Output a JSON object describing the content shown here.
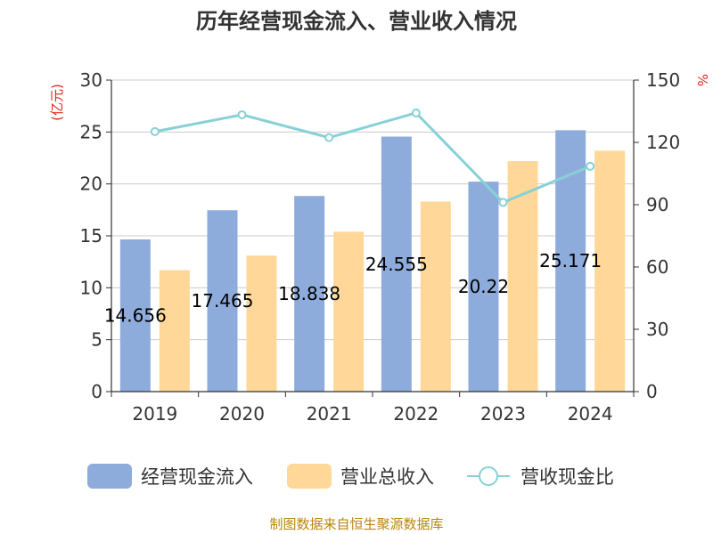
{
  "chart_data": {
    "type": "bar",
    "title": "历年经营现金流入、营业收入情况",
    "categories": [
      "2019",
      "2020",
      "2021",
      "2022",
      "2023",
      "2024"
    ],
    "series": [
      {
        "name": "经营现金流入",
        "type": "bar",
        "axis": "left",
        "color": "#8eacdb",
        "values": [
          14.656,
          17.465,
          18.838,
          24.555,
          20.22,
          25.171
        ],
        "labels": [
          "14.656",
          "17.465",
          "18.838",
          "24.555",
          "20.22",
          "25.171"
        ]
      },
      {
        "name": "营业总收入",
        "type": "bar",
        "axis": "left",
        "color": "#ffd899",
        "values": [
          11.7,
          13.1,
          15.4,
          18.3,
          22.2,
          23.2
        ]
      },
      {
        "name": "营收现金比",
        "type": "line",
        "axis": "right",
        "color": "#87d1d6",
        "values": [
          125.2,
          133.3,
          122.3,
          134.2,
          91.1,
          108.5
        ]
      }
    ],
    "y_left": {
      "label": "(亿元)",
      "min": 0,
      "max": 30,
      "ticks": [
        "0",
        "5",
        "10",
        "15",
        "20",
        "25",
        "30"
      ]
    },
    "y_right": {
      "label": "%",
      "min": 0,
      "max": 150,
      "ticks": [
        "0",
        "30",
        "60",
        "90",
        "120",
        "150"
      ]
    },
    "grid": true,
    "legend": "bottom"
  },
  "source_text": "制图数据来自恒生聚源数据库"
}
